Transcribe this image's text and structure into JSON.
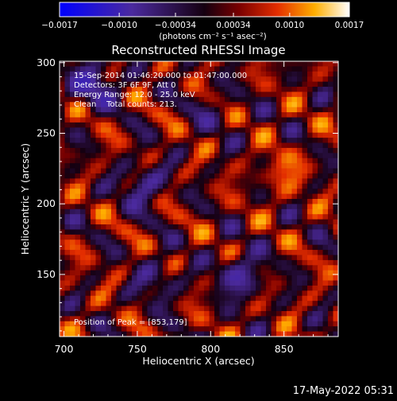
{
  "chart_data": {
    "type": "heatmap",
    "title": "Reconstructed RHESSI Image",
    "xlabel": "Heliocentric X (arcsec)",
    "ylabel": "Heliocentric Y (arcsec)",
    "xlim": [
      697,
      887
    ],
    "ylim": [
      106,
      301
    ],
    "x_ticks": [
      "700",
      "750",
      "800",
      "850"
    ],
    "y_ticks": [
      "150",
      "200",
      "250",
      "300"
    ],
    "x_tick_values": [
      700,
      750,
      800,
      850
    ],
    "y_tick_values": [
      150,
      200,
      250,
      300
    ],
    "colorbar": {
      "range": [
        -0.0017,
        0.0017
      ],
      "tick_labels": [
        "−0.0017",
        "−0.0010",
        "−0.00034",
        "0.00034",
        "0.0010",
        "0.0017"
      ],
      "tick_values": [
        -0.0017,
        -0.001,
        -0.00034,
        0.00034,
        0.001,
        0.0017
      ],
      "unit_label": "(photons cm⁻² s⁻¹ asec⁻²)"
    },
    "annotations": [
      "15-Sep-2014 01:46:20.000 to 01:47:00.000",
      "Detectors: 3F 6F 9F, Att 0",
      "Energy Range: 12.0 - 25.0 keV",
      "Clean    Total counts: 213.",
      "Position of Peak = [853,179]"
    ],
    "peak": [
      853,
      179
    ],
    "footer_date": "17-May-2022 05:31",
    "grid": false
  }
}
